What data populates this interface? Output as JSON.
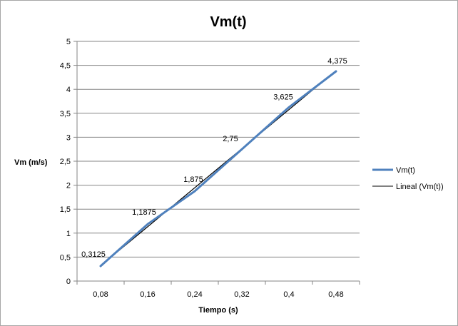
{
  "chart_data": {
    "type": "line",
    "title": "Vm(t)",
    "xlabel": "Tiempo (s)",
    "ylabel": "Vm (m/s)",
    "categories": [
      "0,08",
      "0,16",
      "0,24",
      "0,32",
      "0,4",
      "0,48"
    ],
    "x": [
      0.08,
      0.16,
      0.24,
      0.32,
      0.4,
      0.48
    ],
    "ylim": [
      0,
      5
    ],
    "yticks": [
      0,
      0.5,
      1,
      1.5,
      2,
      2.5,
      3,
      3.5,
      4,
      4.5,
      5
    ],
    "ytick_labels": [
      "0",
      "0,5",
      "1",
      "1,5",
      "2",
      "2,5",
      "3",
      "3,5",
      "4",
      "4,5",
      "5"
    ],
    "grid": true,
    "legend_position": "right",
    "series": [
      {
        "name": "Vm(t)",
        "values": [
          0.3125,
          1.1875,
          1.875,
          2.75,
          3.625,
          4.375
        ],
        "data_labels": [
          "0,3125",
          "1,1875",
          "1,875",
          "2,75",
          "3,625",
          "4,375"
        ],
        "color": "#4f81bd"
      },
      {
        "name": "Lineal (Vm(t))",
        "kind": "linear-trendline",
        "color": "#000000"
      }
    ]
  }
}
